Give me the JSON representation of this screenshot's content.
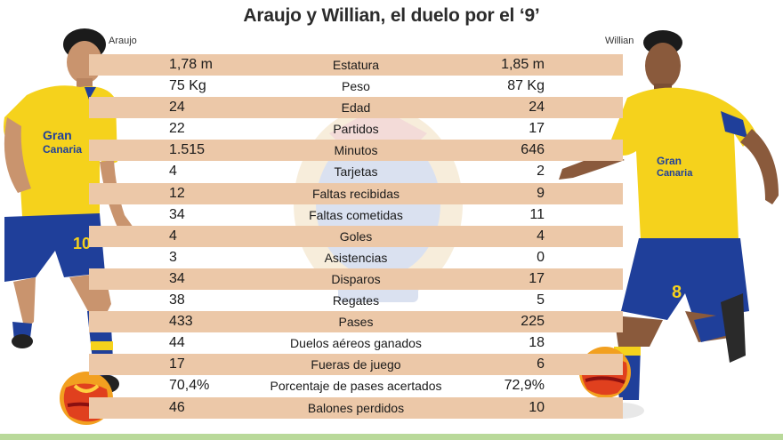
{
  "title": "Araujo y Willian, el duelo por el ‘9’",
  "players": {
    "left": "Araujo",
    "right": "Willian"
  },
  "rows": [
    {
      "label": "Estatura",
      "left": "1,78 m",
      "right": "1,85 m"
    },
    {
      "label": "Peso",
      "left": "75 Kg",
      "right": "87 Kg"
    },
    {
      "label": "Edad",
      "left": "24",
      "right": "24"
    },
    {
      "label": "Partidos",
      "left": "22",
      "right": "17"
    },
    {
      "label": "Minutos",
      "left": "1.515",
      "right": "646"
    },
    {
      "label": "Tarjetas",
      "left": "4",
      "right": "2"
    },
    {
      "label": "Faltas recibidas",
      "left": "12",
      "right": "9"
    },
    {
      "label": "Faltas cometidas",
      "left": "34",
      "right": "11"
    },
    {
      "label": "Goles",
      "left": "4",
      "right": "4"
    },
    {
      "label": "Asistencias",
      "left": "3",
      "right": "0"
    },
    {
      "label": "Disparos",
      "left": "34",
      "right": "17"
    },
    {
      "label": "Regates",
      "left": "38",
      "right": "5"
    },
    {
      "label": "Pases",
      "left": "433",
      "right": "225"
    },
    {
      "label": "Duelos aéreos ganados",
      "left": "44",
      "right": "18"
    },
    {
      "label": "Fueras de juego",
      "left": "17",
      "right": "6"
    },
    {
      "label": "Porcentaje de pases acertados",
      "left": "70,4%",
      "right": "72,9%"
    },
    {
      "label": "Balones perdidos",
      "left": "46",
      "right": "10"
    }
  ],
  "colors": {
    "row_shade": "#ecc8a8",
    "jersey_yellow": "#f5d21c",
    "shorts_blue": "#1f3f9a"
  },
  "icons": {
    "left_player": "footballer-left-illustration",
    "right_player": "footballer-right-illustration",
    "ball": "soccer-ball-icon",
    "crest": "club-crest-watermark"
  }
}
